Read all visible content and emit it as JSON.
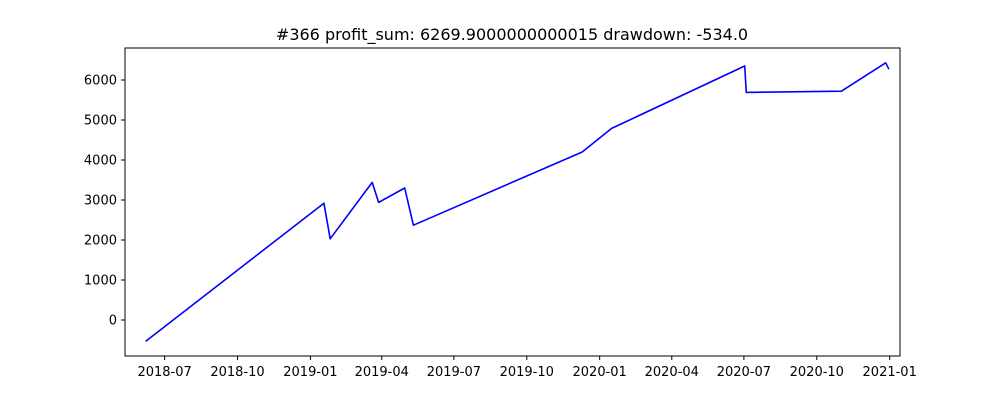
{
  "chart_data": {
    "type": "line",
    "title": "#366   profit_sum: 6269.9000000000015 drawdown: -534.0",
    "xlabel": "",
    "ylabel": "",
    "x_is_date": true,
    "xlim": [
      "2018-05-12",
      "2021-01-14"
    ],
    "ylim": [
      -900,
      6800
    ],
    "x_ticks": [
      "2018-07-01",
      "2018-10-01",
      "2019-01-01",
      "2019-04-01",
      "2019-07-01",
      "2019-10-01",
      "2020-01-01",
      "2020-04-01",
      "2020-07-01",
      "2020-10-01",
      "2021-01-01"
    ],
    "x_tick_labels": [
      "2018-07",
      "2018-10",
      "2019-01",
      "2019-04",
      "2019-07",
      "2019-10",
      "2020-01",
      "2020-04",
      "2020-07",
      "2020-10",
      "2021-01"
    ],
    "y_ticks": [
      0,
      1000,
      2000,
      3000,
      4000,
      5000,
      6000
    ],
    "y_tick_labels": [
      "0",
      "1000",
      "2000",
      "3000",
      "4000",
      "5000",
      "6000"
    ],
    "grid": false,
    "series": [
      {
        "color": "#0000ff",
        "x": [
          "2018-06-07",
          "2019-01-18",
          "2019-01-26",
          "2019-03-20",
          "2019-03-28",
          "2019-04-30",
          "2019-05-11",
          "2019-12-10",
          "2020-01-16",
          "2020-07-02",
          "2020-07-04",
          "2020-11-01",
          "2020-12-27",
          "2020-12-31"
        ],
        "y": [
          -534,
          2920,
          2030,
          3440,
          2940,
          3300,
          2370,
          4200,
          4790,
          6350,
          5690,
          5720,
          6430,
          6270
        ]
      }
    ]
  }
}
